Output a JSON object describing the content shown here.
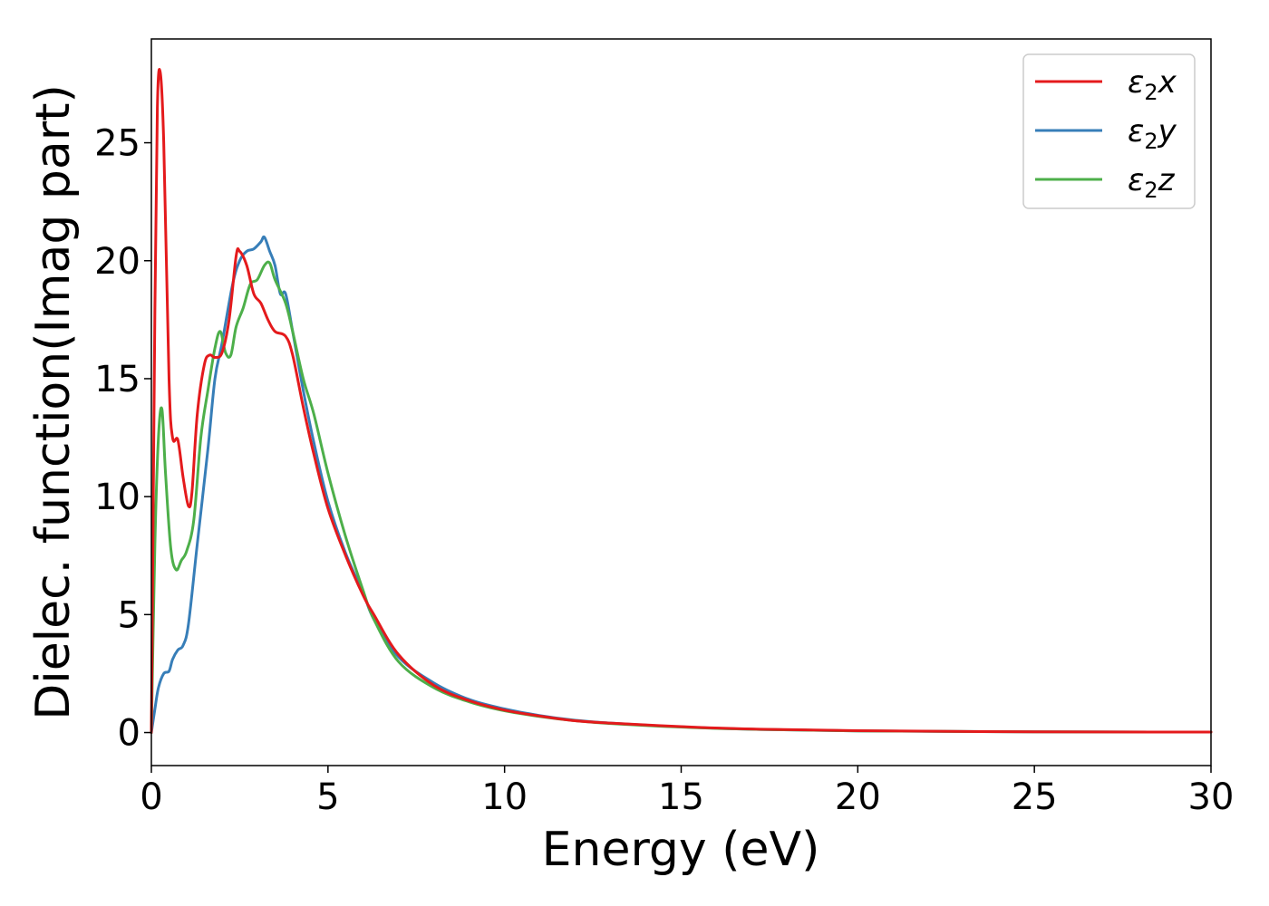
{
  "chart_data": {
    "type": "line",
    "xlabel": "Energy (eV)",
    "ylabel": "Dielec. function(Imag part)",
    "xlim": [
      0,
      30
    ],
    "ylim": [
      -1.4,
      29.4
    ],
    "xticks": [
      "0",
      "5",
      "10",
      "15",
      "20",
      "25",
      "30"
    ],
    "yticks": [
      "0",
      "5",
      "10",
      "15",
      "20",
      "25"
    ],
    "xtick_values": [
      0,
      5,
      10,
      15,
      20,
      25,
      30
    ],
    "ytick_values": [
      0,
      5,
      10,
      15,
      20,
      25
    ],
    "grid": false,
    "legend_position": "top-right",
    "series": [
      {
        "name": "ε2x",
        "legend": {
          "base": "ε",
          "sub": "2",
          "axis": "x"
        },
        "color": "#e41a1c",
        "x": [
          0,
          0.1,
          0.17,
          0.25,
          0.35,
          0.5,
          0.6,
          0.75,
          0.9,
          1.05,
          1.15,
          1.3,
          1.5,
          1.65,
          1.8,
          2.0,
          2.2,
          2.4,
          2.5,
          2.7,
          2.9,
          3.1,
          3.3,
          3.5,
          3.8,
          4.0,
          4.3,
          4.6,
          5.0,
          5.5,
          6.0,
          6.3,
          7.0,
          8.0,
          9.0,
          10.0,
          11.0,
          12.0,
          13.0,
          15.0,
          17.0,
          20.0,
          25.0,
          30.0
        ],
        "y": [
          0,
          18,
          26.5,
          28.0,
          25.0,
          15.0,
          12.5,
          12.4,
          10.8,
          9.6,
          10.2,
          13.5,
          15.6,
          16.0,
          15.9,
          16.1,
          17.5,
          20.2,
          20.4,
          19.8,
          18.6,
          18.2,
          17.5,
          17.0,
          16.8,
          16.0,
          13.8,
          11.8,
          9.5,
          7.5,
          5.8,
          5.0,
          3.3,
          2.0,
          1.35,
          0.95,
          0.7,
          0.5,
          0.4,
          0.25,
          0.15,
          0.08,
          0.03,
          0.02
        ]
      },
      {
        "name": "ε2y",
        "legend": {
          "base": "ε",
          "sub": "2",
          "axis": "y"
        },
        "color": "#377eb8",
        "x": [
          0,
          0.1,
          0.2,
          0.35,
          0.5,
          0.6,
          0.75,
          0.9,
          1.05,
          1.3,
          1.6,
          1.8,
          2.0,
          2.3,
          2.5,
          2.7,
          2.9,
          3.1,
          3.2,
          3.35,
          3.5,
          3.65,
          3.8,
          4.0,
          4.3,
          4.6,
          5.0,
          5.5,
          6.0,
          6.3,
          7.0,
          8.0,
          9.0,
          10.0,
          11.0,
          12.0,
          13.0,
          15.0,
          17.0,
          20.0,
          25.0,
          30.0
        ],
        "y": [
          0,
          1.0,
          1.9,
          2.5,
          2.6,
          3.1,
          3.5,
          3.7,
          4.6,
          8.0,
          12.0,
          15.0,
          16.5,
          19.0,
          20.0,
          20.4,
          20.5,
          20.8,
          21.0,
          20.4,
          19.8,
          18.6,
          18.6,
          17.0,
          14.5,
          12.3,
          9.8,
          7.6,
          5.9,
          4.8,
          3.2,
          2.1,
          1.4,
          1.0,
          0.72,
          0.52,
          0.4,
          0.24,
          0.14,
          0.07,
          0.03,
          0.02
        ]
      },
      {
        "name": "ε2z",
        "legend": {
          "base": "ε",
          "sub": "2",
          "axis": "z"
        },
        "color": "#4daf4a",
        "x": [
          0,
          0.1,
          0.2,
          0.3,
          0.4,
          0.55,
          0.7,
          0.85,
          1.0,
          1.2,
          1.4,
          1.6,
          1.8,
          1.95,
          2.1,
          2.25,
          2.4,
          2.6,
          2.8,
          3.0,
          3.2,
          3.35,
          3.5,
          3.8,
          4.0,
          4.3,
          4.6,
          5.0,
          5.5,
          6.0,
          6.3,
          7.0,
          8.0,
          9.0,
          10.0,
          11.0,
          12.0,
          13.0,
          15.0,
          17.0,
          20.0,
          25.0,
          30.0
        ],
        "y": [
          0,
          8.0,
          12.5,
          13.7,
          11.0,
          7.8,
          6.9,
          7.3,
          7.7,
          9.0,
          12.5,
          14.5,
          16.3,
          17.0,
          16.1,
          16.0,
          17.2,
          18.0,
          19.0,
          19.2,
          19.8,
          19.9,
          19.2,
          18.2,
          17.0,
          15.0,
          13.5,
          11.0,
          8.3,
          6.0,
          4.8,
          3.0,
          1.9,
          1.3,
          0.92,
          0.68,
          0.5,
          0.38,
          0.23,
          0.14,
          0.07,
          0.03,
          0.02
        ]
      }
    ]
  }
}
